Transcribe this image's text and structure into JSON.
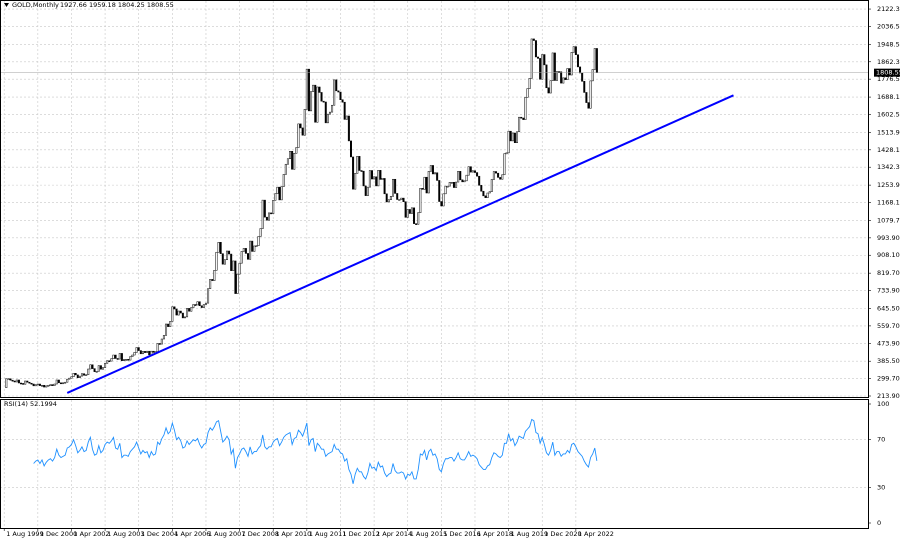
{
  "chart_data": [
    {
      "type": "candlestick",
      "title": "GOLD,Monthly",
      "ohlc": "1927.66 1959.18 1804.25 1808.55",
      "current_label": "1808.55",
      "current_value": 1808.55,
      "color_up": "#ffffff",
      "color_down": "#000000",
      "closes": [
        255,
        299,
        299,
        292,
        288,
        283,
        293,
        278,
        276,
        272,
        288,
        282,
        277,
        273,
        264,
        270,
        273,
        265,
        267,
        258,
        264,
        267,
        270,
        266,
        273,
        293,
        279,
        275,
        279,
        282,
        297,
        302,
        309,
        326,
        318,
        304,
        312,
        324,
        316,
        319,
        347,
        368,
        349,
        334,
        336,
        364,
        346,
        354,
        375,
        388,
        386,
        398,
        416,
        399,
        396,
        424,
        388,
        394,
        395,
        391,
        408,
        416,
        429,
        453,
        438,
        422,
        434,
        428,
        435,
        417,
        435,
        429,
        433,
        473,
        470,
        495,
        513,
        569,
        556,
        582,
        654,
        643,
        613,
        633,
        623,
        599,
        604,
        646,
        632,
        650,
        665,
        663,
        679,
        659,
        650,
        665,
        672,
        743,
        789,
        783,
        834,
        923,
        972,
        916,
        864,
        886,
        929,
        914,
        832,
        880,
        719,
        815,
        869,
        927,
        942,
        917,
        888,
        978,
        927,
        954,
        955,
        1001,
        1040,
        1180,
        1096,
        1081,
        1117,
        1113,
        1179,
        1212,
        1244,
        1181,
        1247,
        1307,
        1357,
        1384,
        1421,
        1332,
        1411,
        1439,
        1556,
        1536,
        1500,
        1628,
        1826,
        1620,
        1715,
        1747,
        1564,
        1738,
        1711,
        1668,
        1664,
        1561,
        1604,
        1614,
        1648,
        1773,
        1719,
        1713,
        1675,
        1663,
        1578,
        1595,
        1472,
        1393,
        1234,
        1312,
        1396,
        1326,
        1323,
        1250,
        1202,
        1244,
        1326,
        1284,
        1295,
        1250,
        1327,
        1282,
        1287,
        1211,
        1171,
        1182,
        1199,
        1283,
        1213,
        1183,
        1183,
        1190,
        1172,
        1095,
        1134,
        1114,
        1142,
        1064,
        1061,
        1118,
        1238,
        1233,
        1293,
        1215,
        1322,
        1351,
        1309,
        1315,
        1277,
        1173,
        1151,
        1211,
        1249,
        1249,
        1268,
        1268,
        1242,
        1269,
        1322,
        1280,
        1270,
        1275,
        1303,
        1345,
        1318,
        1325,
        1316,
        1298,
        1253,
        1224,
        1201,
        1192,
        1215,
        1222,
        1282,
        1321,
        1313,
        1292,
        1283,
        1305,
        1409,
        1413,
        1520,
        1472,
        1511,
        1463,
        1517,
        1589,
        1585,
        1577,
        1687,
        1730,
        1781,
        1975,
        1967,
        1886,
        1879,
        1776,
        1898,
        1847,
        1734,
        1708,
        1769,
        1906,
        1770,
        1814,
        1813,
        1757,
        1783,
        1774,
        1829,
        1797,
        1909,
        1937,
        1897,
        1837,
        1807,
        1766,
        1711,
        1661,
        1633,
        1768,
        1824,
        1928,
        1808.55
      ],
      "ylim": [
        209,
        2162
      ],
      "xlim": [
        -2,
        411
      ],
      "yticks": [
        {
          "value": 2122.3,
          "label": "2122.30"
        },
        {
          "value": 2036.5,
          "label": "2036.50"
        },
        {
          "value": 1948.5,
          "label": "1948.50"
        },
        {
          "value": 1862.3,
          "label": "1862.30"
        },
        {
          "value": 1776.5,
          "label": "1776.50"
        },
        {
          "value": 1688.1,
          "label": "1688.10"
        },
        {
          "value": 1602.5,
          "label": "1602.50"
        },
        {
          "value": 1513.9,
          "label": "1513.90"
        },
        {
          "value": 1428.1,
          "label": "1428.10"
        },
        {
          "value": 1342.3,
          "label": "1342.30"
        },
        {
          "value": 1253.9,
          "label": "1253.90"
        },
        {
          "value": 1168.1,
          "label": "1168.10"
        },
        {
          "value": 1079.7,
          "label": "1079.70"
        },
        {
          "value": 993.9,
          "label": "993.90"
        },
        {
          "value": 908.1,
          "label": "908.10"
        },
        {
          "value": 819.7,
          "label": "819.70"
        },
        {
          "value": 733.9,
          "label": "733.90"
        },
        {
          "value": 645.5,
          "label": "645.50"
        },
        {
          "value": 559.7,
          "label": "559.70"
        },
        {
          "value": 473.9,
          "label": "473.90"
        },
        {
          "value": 385.5,
          "label": "385.50"
        },
        {
          "value": 299.7,
          "label": "299.70"
        },
        {
          "value": 213.9,
          "label": "213.90"
        }
      ],
      "xticks": [
        {
          "value": 0,
          "label": "1 Aug 1999"
        },
        {
          "value": 16,
          "label": "1 Dec 2000"
        },
        {
          "value": 32,
          "label": "1 Apr 2002"
        },
        {
          "value": 48,
          "label": "1 Aug 2003"
        },
        {
          "value": 64,
          "label": "1 Dec 2004"
        },
        {
          "value": 80,
          "label": "1 Apr 2006"
        },
        {
          "value": 96,
          "label": "1 Aug 2007"
        },
        {
          "value": 112,
          "label": "1 Dec 2008"
        },
        {
          "value": 128,
          "label": "1 Apr 2010"
        },
        {
          "value": 144,
          "label": "1 Aug 2011"
        },
        {
          "value": 160,
          "label": "1 Dec 2012"
        },
        {
          "value": 176,
          "label": "1 Apr 2014"
        },
        {
          "value": 192,
          "label": "1 Aug 2015"
        },
        {
          "value": 208,
          "label": "1 Dec 2016"
        },
        {
          "value": 224,
          "label": "1 Apr 2018"
        },
        {
          "value": 240,
          "label": "1 Aug 2019"
        },
        {
          "value": 256,
          "label": "1 Dec 2020"
        },
        {
          "value": 272,
          "label": "1 Apr 2022"
        }
      ],
      "trendline": {
        "x": [
          30,
          347
        ],
        "y": [
          229,
          1697
        ],
        "color": "#0000ff"
      },
      "grid": true
    },
    {
      "type": "line",
      "title": "RSI(14) 52.1994",
      "color": "#1e90ff",
      "ylim": [
        0,
        100
      ],
      "yticks": [
        100,
        70,
        30,
        0
      ],
      "values": [
        null,
        null,
        null,
        null,
        null,
        null,
        null,
        null,
        null,
        null,
        null,
        null,
        null,
        null,
        50,
        52,
        53,
        50,
        53,
        48,
        51,
        53,
        54,
        52,
        55,
        62,
        57,
        55,
        56,
        57,
        63,
        64,
        66,
        70,
        65,
        59,
        61,
        64,
        60,
        61,
        68,
        72,
        62,
        57,
        58,
        65,
        59,
        61,
        66,
        68,
        67,
        69,
        72,
        63,
        62,
        67,
        55,
        57,
        57,
        56,
        60,
        62,
        64,
        68,
        63,
        58,
        61,
        59,
        60,
        55,
        60,
        57,
        58,
        68,
        66,
        71,
        74,
        80,
        75,
        77,
        84,
        78,
        70,
        72,
        69,
        63,
        64,
        69,
        66,
        68,
        70,
        69,
        71,
        66,
        63,
        66,
        67,
        76,
        80,
        78,
        81,
        85,
        86,
        77,
        68,
        70,
        73,
        70,
        58,
        62,
        46,
        55,
        58,
        62,
        63,
        60,
        56,
        64,
        58,
        60,
        60,
        63,
        65,
        74,
        64,
        62,
        64,
        64,
        68,
        70,
        71,
        65,
        68,
        72,
        74,
        75,
        76,
        66,
        71,
        72,
        78,
        76,
        73,
        78,
        84,
        65,
        70,
        71,
        60,
        67,
        65,
        62,
        62,
        56,
        58,
        59,
        60,
        66,
        62,
        62,
        59,
        58,
        52,
        54,
        45,
        41,
        33,
        41,
        46,
        43,
        43,
        39,
        37,
        42,
        50,
        46,
        47,
        44,
        51,
        47,
        48,
        42,
        39,
        41,
        42,
        50,
        44,
        42,
        42,
        43,
        42,
        37,
        41,
        40,
        43,
        37,
        37,
        45,
        58,
        57,
        61,
        53,
        60,
        62,
        57,
        58,
        54,
        45,
        43,
        50,
        54,
        54,
        55,
        55,
        52,
        55,
        59,
        54,
        53,
        53,
        56,
        60,
        56,
        57,
        56,
        54,
        49,
        47,
        45,
        45,
        48,
        49,
        55,
        59,
        58,
        56,
        55,
        57,
        67,
        67,
        75,
        69,
        71,
        65,
        68,
        73,
        72,
        71,
        77,
        79,
        81,
        87,
        86,
        76,
        75,
        67,
        72,
        66,
        59,
        57,
        61,
        68,
        57,
        60,
        60,
        56,
        58,
        58,
        61,
        59,
        66,
        67,
        64,
        60,
        58,
        56,
        52,
        49,
        47,
        55,
        58,
        63,
        52.1994
      ]
    }
  ]
}
